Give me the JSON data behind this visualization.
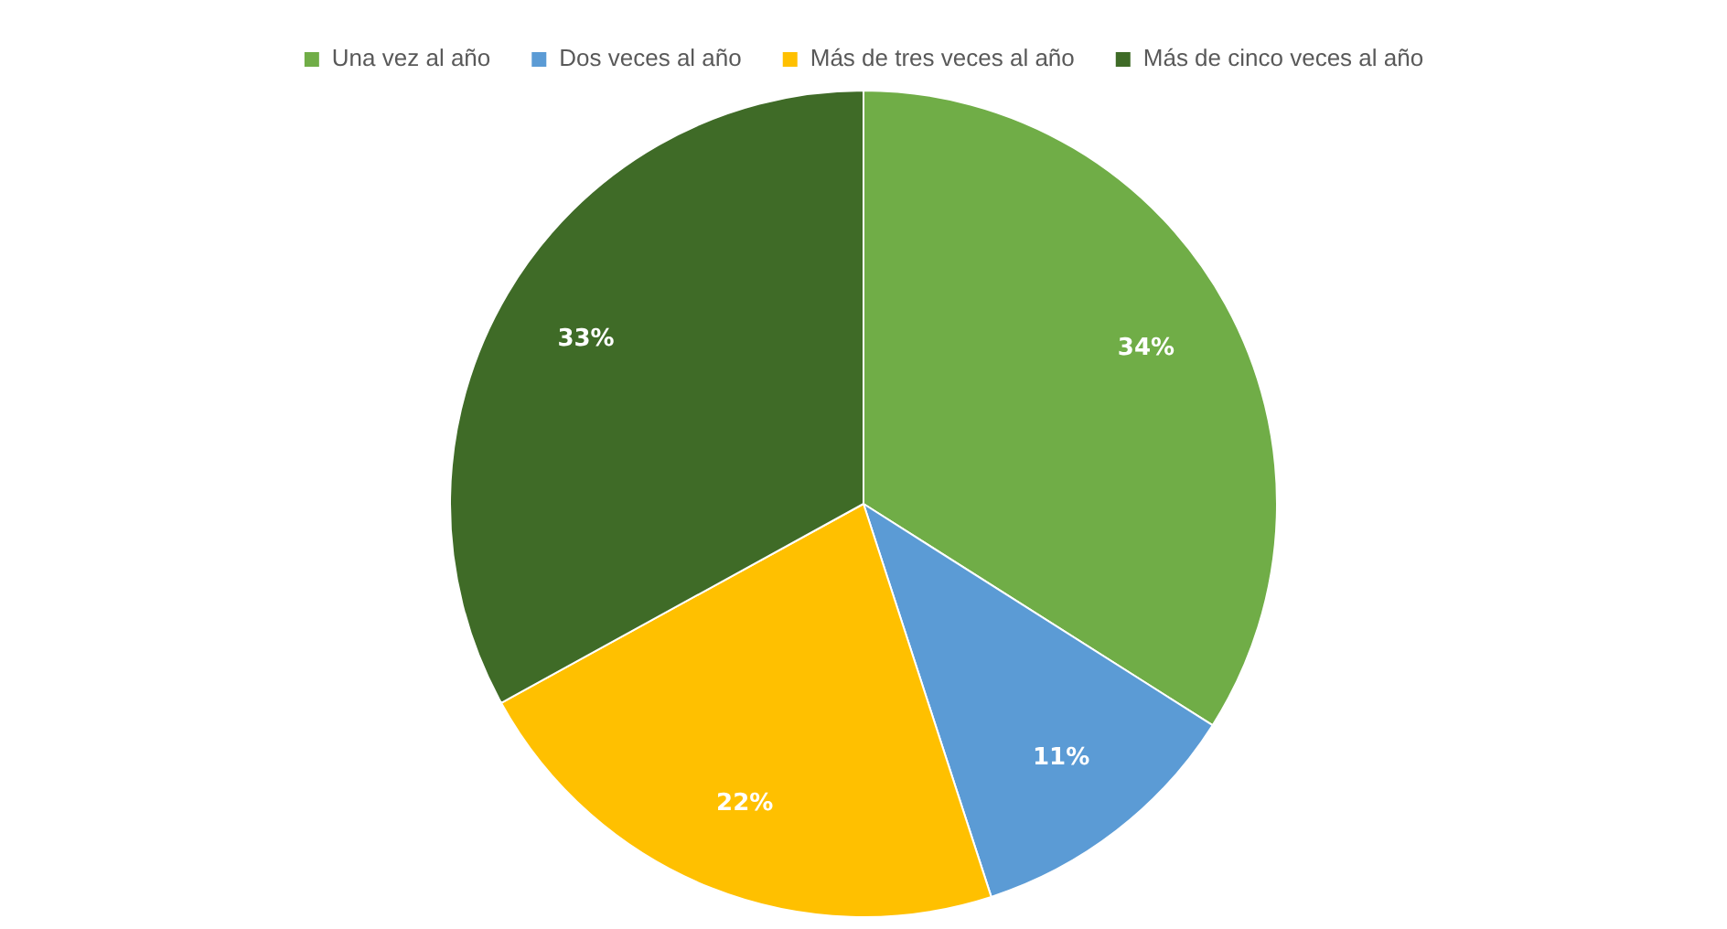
{
  "chart_data": {
    "type": "pie",
    "categories": [
      "Una vez al año",
      "Dos veces al año",
      "Más de tres veces al año",
      "Más de cinco veces al año"
    ],
    "values": [
      34,
      11,
      22,
      33
    ],
    "colors": [
      "#70ad47",
      "#5b9bd5",
      "#ffc000",
      "#3f6b27"
    ],
    "value_labels": [
      "34%",
      "11%",
      "22%",
      "33%"
    ],
    "legend": "top"
  }
}
